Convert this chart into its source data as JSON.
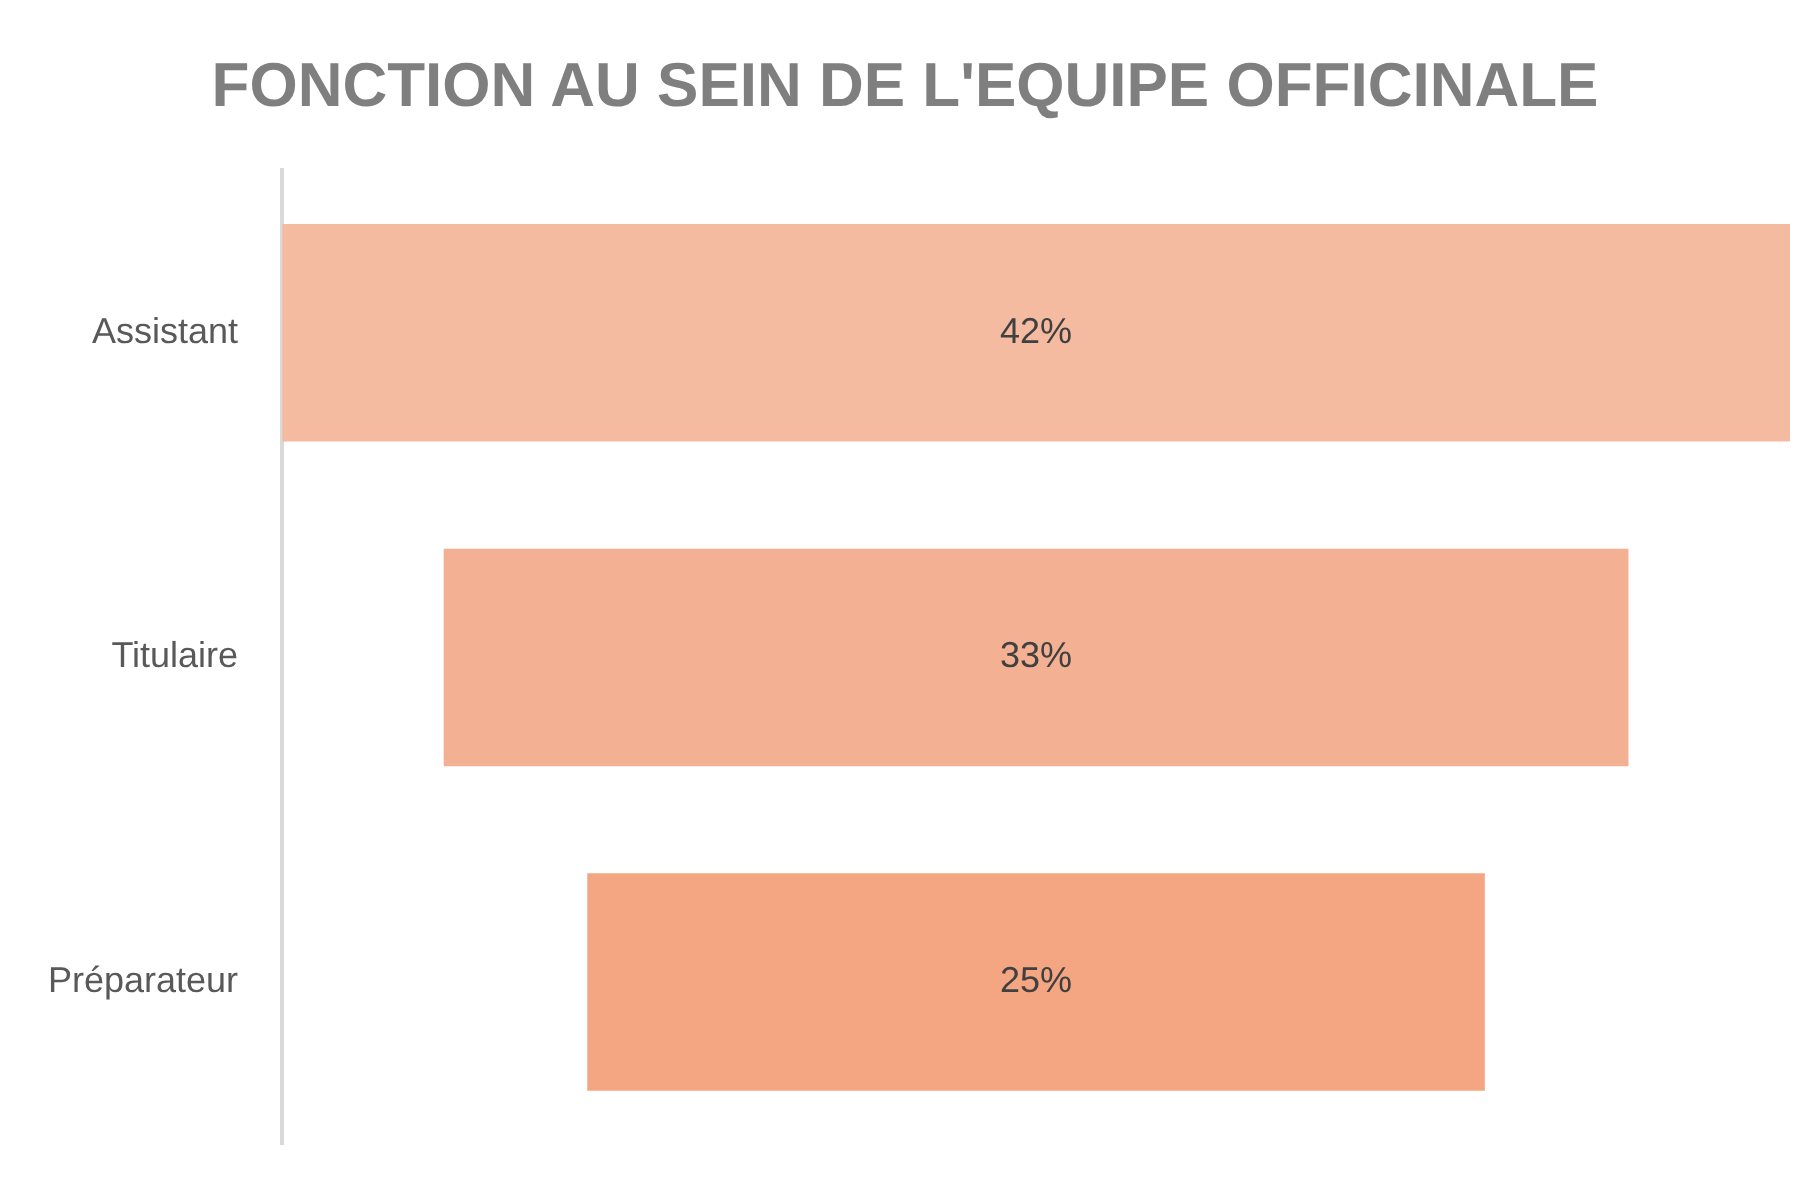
{
  "chart_data": {
    "type": "other",
    "title": "FONCTION AU SEIN DE L'EQUIPE OFFICINALE",
    "categories": [
      "Assistant",
      "Titulaire",
      "Préparateur"
    ],
    "values": [
      42,
      33,
      25
    ],
    "value_labels": [
      "42%",
      "33%",
      "25%"
    ],
    "colors": [
      "#f5bba1",
      "#f4b093",
      "#f4a683"
    ]
  }
}
